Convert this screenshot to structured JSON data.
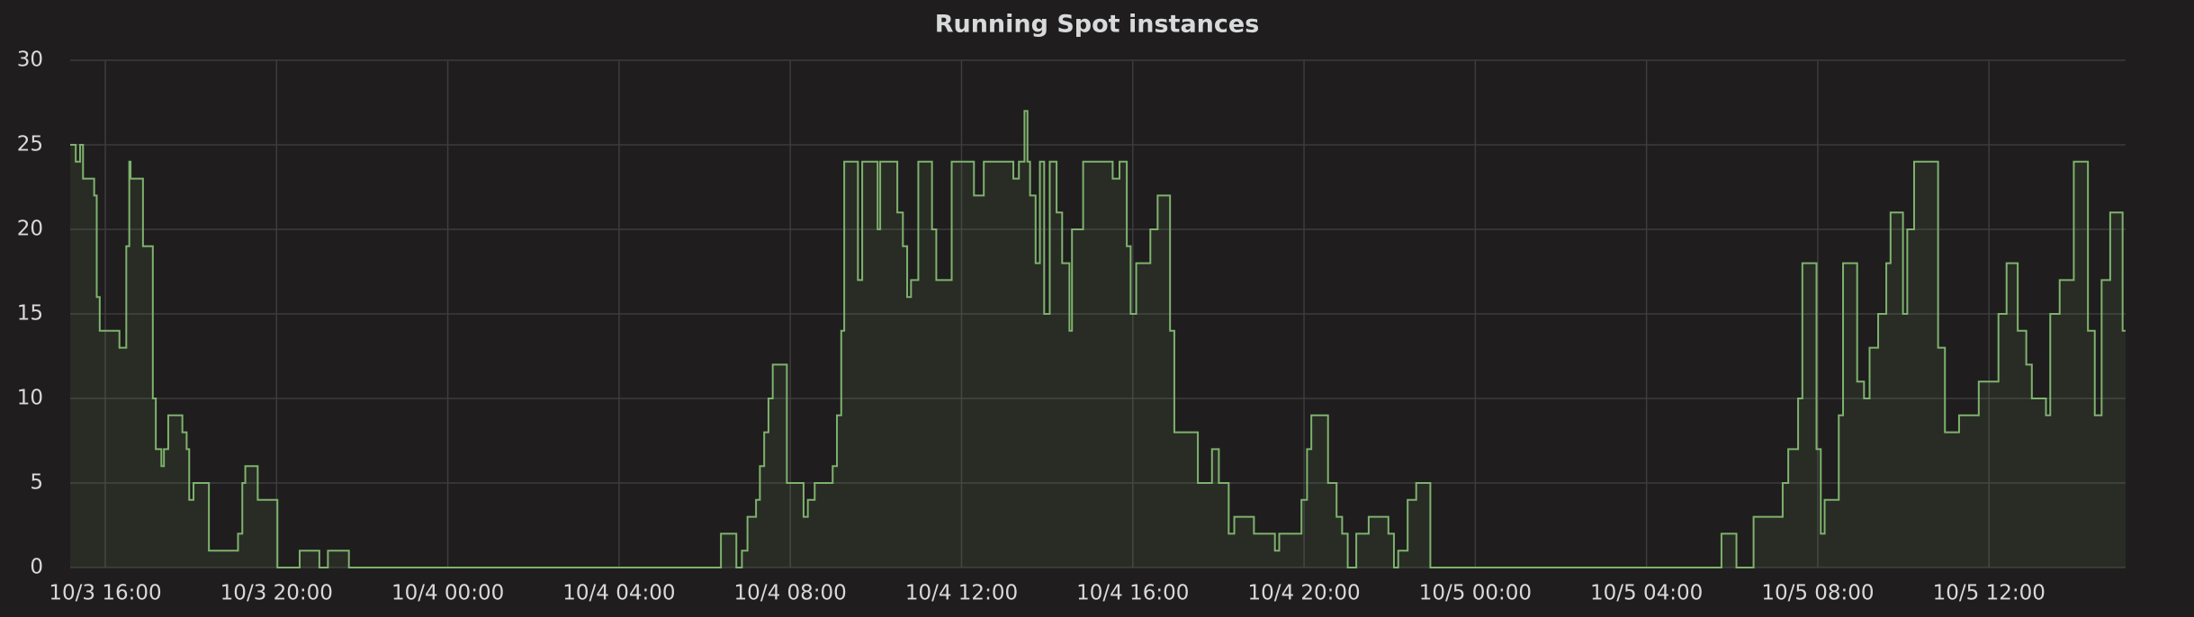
{
  "chart_data": {
    "type": "step-area",
    "title": "Running Spot instances",
    "color": "#7eb26d",
    "grid": true,
    "x": [
      15.18,
      15.31,
      15.41,
      15.48,
      15.74,
      15.8,
      15.87,
      16.33,
      16.49,
      16.56,
      16.59,
      16.88,
      17.11,
      17.18,
      17.31,
      17.37,
      17.47,
      17.8,
      17.9,
      17.96,
      18.06,
      18.42,
      19.1,
      19.2,
      19.27,
      19.56,
      20.02,
      20.54,
      21.0,
      21.2,
      21.69,
      30.38,
      30.74,
      30.87,
      31.0,
      31.2,
      31.29,
      31.39,
      31.49,
      31.59,
      31.92,
      32.31,
      32.41,
      32.57,
      32.99,
      33.09,
      33.19,
      33.26,
      33.58,
      33.68,
      34.04,
      34.1,
      34.5,
      34.63,
      34.73,
      34.82,
      34.99,
      35.31,
      35.41,
      35.77,
      36.29,
      36.52,
      37.21,
      37.34,
      37.47,
      37.54,
      37.6,
      37.73,
      37.83,
      37.93,
      38.06,
      38.22,
      38.35,
      38.52,
      38.58,
      38.84,
      39.53,
      39.69,
      39.86,
      39.95,
      40.08,
      40.41,
      40.58,
      40.87,
      40.97,
      41.52,
      41.85,
      42.01,
      42.24,
      42.37,
      42.83,
      43.32,
      43.42,
      43.94,
      44.07,
      44.17,
      44.56,
      44.76,
      44.89,
      45.02,
      45.22,
      45.51,
      45.97,
      46.1,
      46.2,
      46.42,
      46.62,
      46.95,
      53.75,
      54.1,
      54.5,
      55.18,
      55.31,
      55.54,
      55.64,
      55.97,
      56.07,
      56.16,
      56.49,
      56.59,
      56.92,
      57.08,
      57.21,
      57.41,
      57.6,
      57.7,
      57.99,
      58.09,
      58.25,
      58.81,
      58.97,
      59.3,
      59.76,
      60.22,
      60.41,
      60.67,
      60.87,
      61.0,
      61.33,
      61.43,
      61.65,
      61.98,
      62.31,
      62.47,
      62.63,
      62.83,
      63.12
    ],
    "values": [
      25,
      24,
      25,
      23,
      22,
      16,
      14,
      13,
      19,
      24,
      23,
      19,
      10,
      7,
      6,
      7,
      9,
      8,
      7,
      4,
      5,
      1,
      2,
      5,
      6,
      4,
      0,
      1,
      0,
      1,
      0,
      2,
      0,
      1,
      3,
      4,
      6,
      8,
      10,
      12,
      5,
      3,
      4,
      5,
      6,
      9,
      14,
      24,
      17,
      24,
      20,
      24,
      21,
      19,
      16,
      17,
      24,
      20,
      17,
      24,
      22,
      24,
      23,
      24,
      27,
      24,
      22,
      18,
      24,
      15,
      24,
      21,
      18,
      14,
      20,
      24,
      23,
      24,
      19,
      15,
      18,
      20,
      22,
      14,
      8,
      5,
      7,
      5,
      2,
      3,
      2,
      1,
      2,
      4,
      7,
      9,
      5,
      3,
      2,
      0,
      2,
      3,
      2,
      0,
      1,
      4,
      5,
      0,
      2,
      0,
      3,
      5,
      7,
      10,
      18,
      7,
      2,
      4,
      9,
      18,
      11,
      10,
      13,
      15,
      18,
      21,
      15,
      20,
      24,
      13,
      8,
      9,
      11,
      15,
      18,
      14,
      12,
      10,
      9,
      15,
      17,
      24,
      14,
      9,
      17,
      21,
      14
    ],
    "xlim": [
      15.18,
      63.19
    ],
    "xticks": [
      {
        "value": 16,
        "label": "10/3 16:00"
      },
      {
        "value": 20,
        "label": "10/3 20:00"
      },
      {
        "value": 24,
        "label": "10/4 00:00"
      },
      {
        "value": 28,
        "label": "10/4 04:00"
      },
      {
        "value": 32,
        "label": "10/4 08:00"
      },
      {
        "value": 36,
        "label": "10/4 12:00"
      },
      {
        "value": 40,
        "label": "10/4 16:00"
      },
      {
        "value": 44,
        "label": "10/4 20:00"
      },
      {
        "value": 48,
        "label": "10/5 00:00"
      },
      {
        "value": 52,
        "label": "10/5 04:00"
      },
      {
        "value": 56,
        "label": "10/5 08:00"
      },
      {
        "value": 60,
        "label": "10/5 12:00"
      }
    ],
    "ylim": [
      0,
      30
    ],
    "yticks": [
      0,
      5,
      10,
      15,
      20,
      25,
      30
    ]
  }
}
